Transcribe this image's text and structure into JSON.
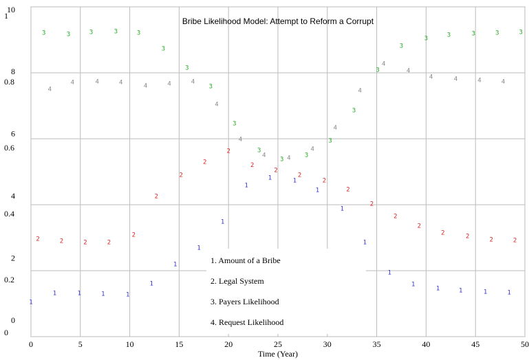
{
  "chart_data": {
    "type": "scatter",
    "title": "Bribe Likelihood Model: Attempt to Reform a Corrupt",
    "x_label": "Time (Year)",
    "xlim": [
      0,
      50
    ],
    "xticks": [
      0,
      5,
      10,
      15,
      20,
      25,
      30,
      35,
      40,
      45,
      50
    ],
    "ylim": [
      0,
      1
    ],
    "yticks": [
      0,
      0.2,
      0.4,
      0.6,
      0.8,
      1
    ],
    "y2lim": [
      0,
      10
    ],
    "y2ticks": [
      0,
      2,
      4,
      6,
      8,
      10
    ],
    "grid": true,
    "series": [
      {
        "name": "1. Amount of a Bribe",
        "marker": "1",
        "color": "#3333cc",
        "axis": "y2",
        "x": [
          0,
          2.4,
          4.9,
          7.3,
          9.8,
          12.2,
          14.6,
          17,
          19.4,
          21.8,
          24.2,
          26.7,
          29,
          31.5,
          33.8,
          36.3,
          38.7,
          41.2,
          43.5,
          46,
          48.4
        ],
        "values": [
          1.04,
          1.31,
          1.31,
          1.29,
          1.27,
          1.6,
          2.19,
          2.69,
          3.48,
          4.58,
          4.81,
          4.73,
          4.44,
          3.88,
          2.85,
          1.94,
          1.58,
          1.46,
          1.4,
          1.35,
          1.33
        ]
      },
      {
        "name": "2. Legal System",
        "marker": "2",
        "color": "#dd2222",
        "x": [
          0.7,
          3.1,
          5.5,
          7.9,
          10.4,
          12.7,
          15.2,
          17.6,
          20,
          22.4,
          24.8,
          27.2,
          29.7,
          32.1,
          34.5,
          36.9,
          39.3,
          41.7,
          44.2,
          46.6,
          49
        ],
        "values": [
          0.296,
          0.29,
          0.285,
          0.285,
          0.308,
          0.425,
          0.49,
          0.529,
          0.563,
          0.52,
          0.504,
          0.49,
          0.473,
          0.446,
          0.402,
          0.365,
          0.335,
          0.315,
          0.304,
          0.294,
          0.292
        ]
      },
      {
        "name": "3. Payers Likelihood",
        "marker": "3",
        "color": "#22aa22",
        "x": [
          1.3,
          3.8,
          6.1,
          8.6,
          10.9,
          13.4,
          15.8,
          18.2,
          20.6,
          23.1,
          25.4,
          27.9,
          30.3,
          32.7,
          35.1,
          37.5,
          40,
          42.3,
          44.8,
          47.2,
          49.6
        ],
        "values": [
          0.921,
          0.917,
          0.923,
          0.925,
          0.921,
          0.873,
          0.815,
          0.758,
          0.646,
          0.565,
          0.538,
          0.55,
          0.594,
          0.685,
          0.808,
          0.881,
          0.904,
          0.915,
          0.919,
          0.921,
          0.923
        ]
      },
      {
        "name": "4. Request Likelihood",
        "marker": "4",
        "color": "#888888",
        "x": [
          1.9,
          4.2,
          6.7,
          9.1,
          11.6,
          14,
          16.4,
          18.8,
          21.2,
          23.6,
          26.1,
          28.5,
          30.8,
          33.3,
          35.7,
          38.2,
          40.5,
          43,
          45.4,
          47.8
        ],
        "values": [
          0.75,
          0.771,
          0.773,
          0.771,
          0.76,
          0.767,
          0.773,
          0.704,
          0.598,
          0.55,
          0.542,
          0.569,
          0.633,
          0.746,
          0.827,
          0.806,
          0.788,
          0.781,
          0.777,
          0.773
        ]
      }
    ]
  }
}
